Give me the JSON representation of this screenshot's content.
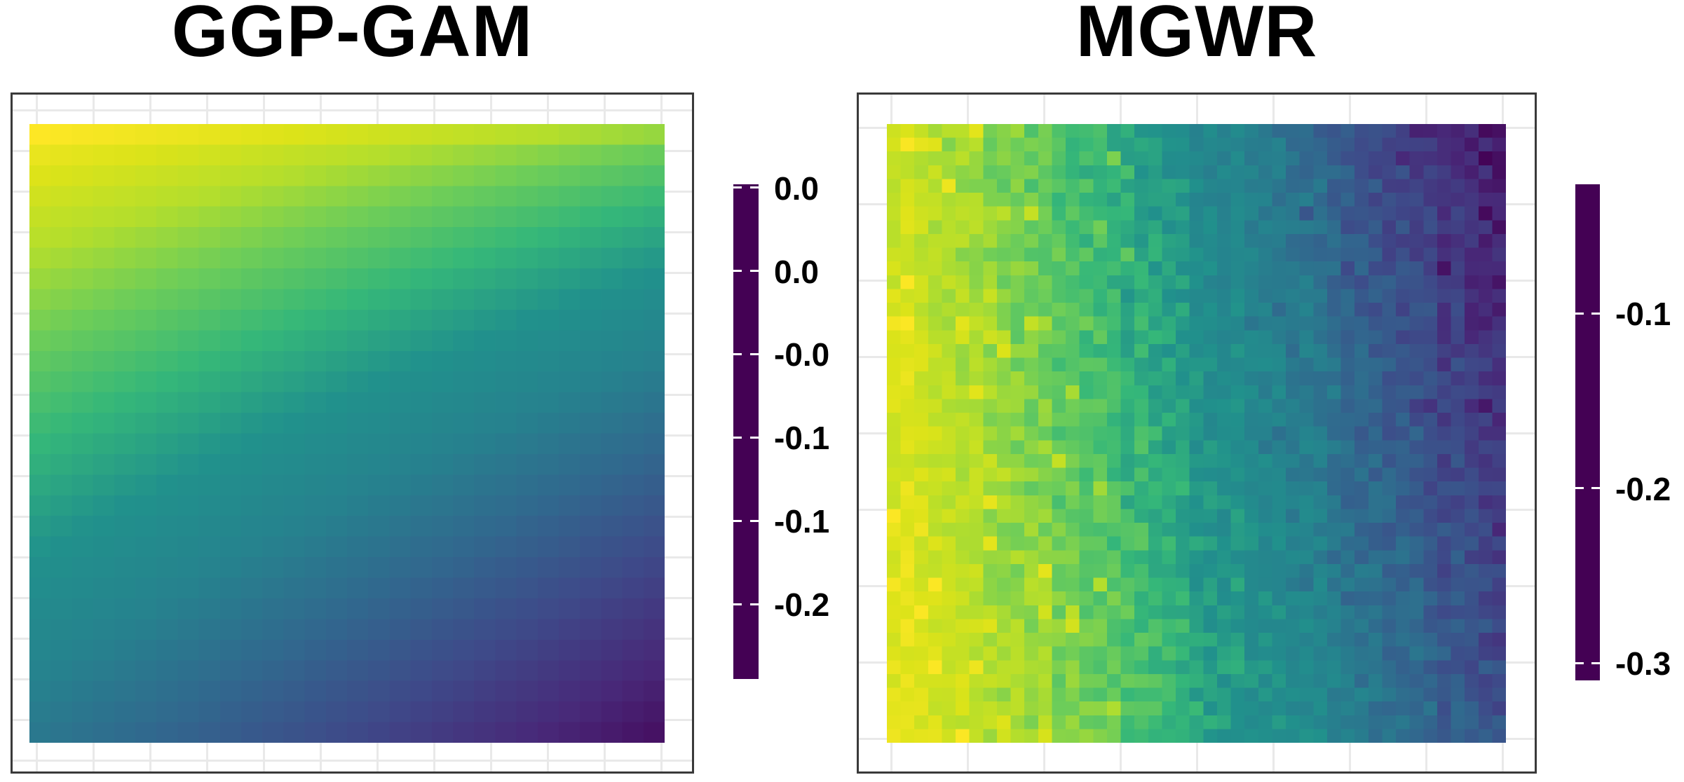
{
  "style": {
    "background": "#ffffff",
    "panel_border": "#3a3a3a",
    "gridline": "#e9e9e9",
    "text_color": "#000000",
    "colorbar_tick_mark_color": "#ffffff"
  },
  "palette_stops": [
    "#440154",
    "#482878",
    "#3E4A89",
    "#31688E",
    "#26828E",
    "#21918C",
    "#35B779",
    "#6DCD59",
    "#B4DE2C",
    "#DCE319",
    "#FDE725"
  ],
  "chart_data": [
    {
      "type": "heatmap",
      "title": "GGP-GAM",
      "palette": "viridis",
      "grid": {
        "ncols": 30,
        "nrows": 30
      },
      "surface_model": {
        "kind": "smooth_bilinear",
        "description": "smooth spatial coefficient surface, maximum at top-left fading diagonally to minimum at bottom-right",
        "corner_values": {
          "top_left": 0.052,
          "top_right": -0.02,
          "bottom_left": -0.138,
          "bottom_right": -0.232
        },
        "y_exponent": 0.7
      },
      "value_range": {
        "max": 0.052,
        "min": -0.245
      },
      "colorbar": {
        "value_top": 0.052,
        "value_bottom": -0.245,
        "ticks": [
          {
            "label": "0.0",
            "value": 0.05
          },
          {
            "label": "0.0",
            "value": 0.0
          },
          {
            "label": "-0.0",
            "value": -0.05
          },
          {
            "label": "-0.1",
            "value": -0.1
          },
          {
            "label": "-0.1",
            "value": -0.15
          },
          {
            "label": "-0.2",
            "value": -0.2
          }
        ]
      },
      "axes": {
        "x_title": "",
        "y_title": "",
        "tick_labels_shown": false,
        "grid": true
      }
    },
    {
      "type": "heatmap",
      "title": "MGWR",
      "palette": "viridis",
      "grid": {
        "ncols": 45,
        "nrows": 45
      },
      "surface_model": {
        "kind": "noisy_gradient",
        "description": "noisy cellwise estimates, bright yellow-green on left edge, teal in middle, darkest purple at top-right, steel blue at bottom-right",
        "base": {
          "intercept": -0.045,
          "x_slope": -0.2,
          "x_top_extra": -0.05,
          "topleft_dim": -0.02
        },
        "noise": {
          "cell_amplitude": 0.015,
          "column_amplitude": 0.006,
          "bright_patch_probability": 0.08,
          "bright_patch_boost": 0.03,
          "bright_patch_x_limit": 0.4,
          "dark_patch_probability": 0.08,
          "dark_patch_dip": 0.014,
          "seed": 20240607
        },
        "clamp": [
          -0.308,
          -0.028
        ]
      },
      "value_range": {
        "max": -0.026,
        "min": -0.31
      },
      "colorbar": {
        "value_top": -0.026,
        "value_bottom": -0.31,
        "ticks": [
          {
            "label": "-0.1",
            "value": -0.1
          },
          {
            "label": "-0.2",
            "value": -0.2
          },
          {
            "label": "-0.3",
            "value": -0.3
          }
        ]
      },
      "axes": {
        "x_title": "",
        "y_title": "",
        "tick_labels_shown": false,
        "grid": true
      }
    }
  ]
}
